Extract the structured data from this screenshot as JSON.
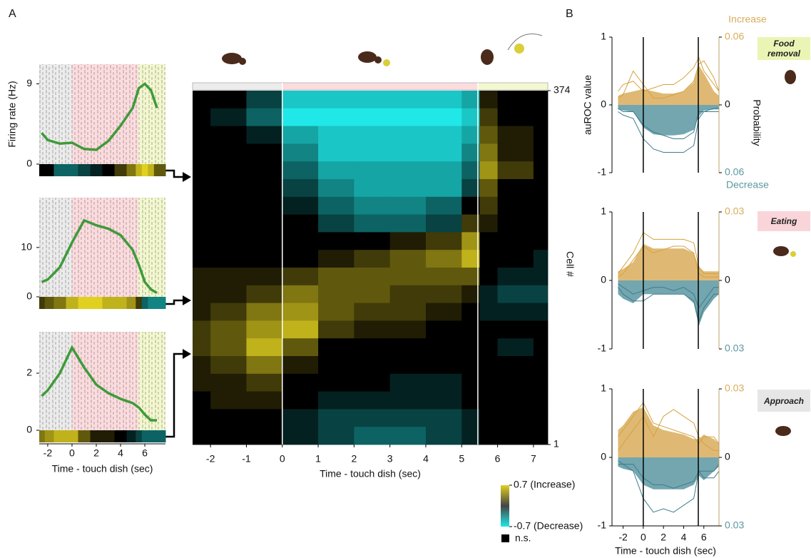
{
  "label_a": "A",
  "label_b": "B",
  "epoch_bounds": [
    0,
    5.45
  ],
  "chart_data": [
    {
      "type": "line",
      "ylabel": "Firing rate (Hz)",
      "color": "#3f9a3a",
      "x": [
        -2.5,
        -2,
        -1,
        0,
        1,
        2,
        3,
        4,
        5,
        5.5,
        6,
        6.5,
        7
      ],
      "values": [
        3.5,
        2.7,
        2.3,
        2.4,
        1.7,
        1.6,
        2.6,
        4.3,
        6.3,
        8.5,
        9.0,
        8.3,
        6.3
      ],
      "auroc": [
        0,
        0,
        -0.3,
        -0.3,
        -0.2,
        -0.1,
        0,
        0.2,
        0.4,
        0.6,
        0.7,
        0.6,
        0.3
      ],
      "xlim": [
        -2.7,
        7.7
      ],
      "ylim": [
        0,
        11.2
      ],
      "yticks": [
        0,
        9
      ]
    },
    {
      "type": "line",
      "color": "#3f9a3a",
      "x": [
        -2.5,
        -2,
        -1,
        0,
        1,
        2,
        3,
        4,
        5,
        5.5,
        6,
        6.5,
        7
      ],
      "values": [
        3,
        3.5,
        6,
        11,
        15.5,
        14.5,
        13.8,
        12.5,
        9.5,
        6.5,
        3,
        1.5,
        0.8
      ],
      "auroc": [
        0.2,
        0.3,
        0.4,
        0.6,
        0.7,
        0.7,
        0.6,
        0.6,
        0.5,
        0.2,
        -0.3,
        -0.4,
        -0.4
      ],
      "xlim": [
        -2.7,
        7.7
      ],
      "ylim": [
        0,
        20.1
      ],
      "yticks": [
        0,
        10
      ]
    },
    {
      "type": "line",
      "color": "#3f9a3a",
      "xlabel": "Time - touch dish (sec)",
      "x": [
        -2.5,
        -2,
        -1,
        0,
        1,
        2,
        3,
        4,
        5,
        5.5,
        6,
        6.5,
        7
      ],
      "values": [
        1.2,
        1.4,
        2.0,
        2.9,
        2.2,
        1.6,
        1.3,
        1.1,
        0.95,
        0.8,
        0.55,
        0.35,
        0.35
      ],
      "auroc": [
        0.4,
        0.5,
        0.6,
        0.6,
        0.3,
        0.1,
        0.1,
        0,
        -0.1,
        -0.2,
        -0.3,
        -0.3,
        -0.3
      ],
      "xlim": [
        -2.7,
        7.7
      ],
      "ylim": [
        0,
        3.45
      ],
      "yticks": [
        0,
        2
      ],
      "xticks": [
        -2,
        0,
        2,
        4,
        6
      ]
    },
    {
      "type": "heatmap",
      "xlabel": "Time - touch dish (sec)",
      "ylabel": "Cell #",
      "bins": [
        -2.5,
        -2,
        -1,
        0,
        1,
        2,
        3,
        4,
        5,
        5.5,
        6,
        7,
        7.4
      ],
      "xlim": [
        -2.5,
        7.4
      ],
      "xticks": [
        -2,
        -1,
        0,
        1,
        2,
        3,
        4,
        5,
        6,
        7
      ],
      "ylim": [
        1,
        374
      ],
      "yticks": [
        1,
        374
      ],
      "values": [
        [
          0,
          0,
          -0.2,
          -0.6,
          -0.6,
          -0.6,
          -0.6,
          -0.6,
          -0.5,
          0.1,
          0,
          0
        ],
        [
          0,
          -0.1,
          -0.3,
          -0.7,
          -0.7,
          -0.7,
          -0.7,
          -0.7,
          -0.6,
          0.2,
          0,
          0
        ],
        [
          0,
          0,
          -0.1,
          -0.5,
          -0.6,
          -0.6,
          -0.6,
          -0.6,
          -0.5,
          0.3,
          0.1,
          0
        ],
        [
          0,
          0,
          0,
          -0.4,
          -0.6,
          -0.6,
          -0.6,
          -0.6,
          -0.4,
          0.4,
          0.1,
          0
        ],
        [
          0,
          0,
          0,
          -0.3,
          -0.5,
          -0.5,
          -0.5,
          -0.5,
          -0.3,
          0.5,
          0.2,
          0
        ],
        [
          0,
          0,
          0,
          -0.2,
          -0.4,
          -0.5,
          -0.5,
          -0.5,
          -0.2,
          0.3,
          0,
          0
        ],
        [
          0,
          0,
          0,
          -0.1,
          -0.3,
          -0.4,
          -0.4,
          -0.3,
          0,
          0.2,
          0,
          0
        ],
        [
          0,
          0,
          0,
          0,
          -0.2,
          -0.3,
          -0.3,
          -0.2,
          0.2,
          0.1,
          0,
          0
        ],
        [
          0,
          0,
          0,
          0,
          0,
          0,
          0.1,
          0.2,
          0.5,
          0,
          0,
          0
        ],
        [
          0,
          0,
          0,
          0,
          0.1,
          0.2,
          0.3,
          0.4,
          0.6,
          0,
          0,
          -0.1
        ],
        [
          0.1,
          0.1,
          0.1,
          0.2,
          0.3,
          0.3,
          0.3,
          0.3,
          0.3,
          0,
          -0.1,
          -0.1
        ],
        [
          0.1,
          0.1,
          0.2,
          0.4,
          0.3,
          0.3,
          0.2,
          0.2,
          0.1,
          -0.1,
          -0.2,
          -0.2
        ],
        [
          0.1,
          0.2,
          0.4,
          0.5,
          0.3,
          0.2,
          0.2,
          0.1,
          0,
          -0.1,
          -0.1,
          -0.1
        ],
        [
          0.2,
          0.3,
          0.5,
          0.6,
          0.2,
          0.1,
          0.1,
          0,
          0,
          0,
          0,
          0
        ],
        [
          0.2,
          0.3,
          0.6,
          0.3,
          0,
          0,
          0,
          0,
          0,
          0,
          -0.1,
          0
        ],
        [
          0.1,
          0.2,
          0.4,
          0.1,
          0,
          0,
          0,
          0,
          0,
          0,
          0,
          0
        ],
        [
          0.1,
          0.1,
          0.2,
          0,
          0,
          0,
          -0.1,
          -0.1,
          0,
          0,
          0,
          0
        ],
        [
          0,
          0.1,
          0.1,
          0,
          -0.1,
          -0.1,
          -0.1,
          -0.1,
          0,
          0,
          0,
          0
        ],
        [
          0,
          0,
          0,
          -0.1,
          -0.2,
          -0.2,
          -0.2,
          -0.2,
          -0.1,
          0,
          0,
          0
        ],
        [
          0,
          0,
          0,
          -0.1,
          -0.2,
          -0.3,
          -0.3,
          -0.2,
          -0.1,
          0,
          0,
          0
        ]
      ],
      "colorbar": {
        "lim": [
          -0.7,
          0.7
        ],
        "ticks": [
          {
            "value": 0.7,
            "label": "0.7 (Increase)"
          },
          {
            "value": -0.7,
            "label": "-0.7 (Decrease)"
          }
        ]
      },
      "ns_label": "n.s."
    },
    {
      "type": "area",
      "tag": "Food removal",
      "ylabel": "auROC value",
      "y2label": "Probability",
      "x": [
        -2.5,
        -2,
        -1,
        0,
        1,
        2,
        3,
        4,
        5,
        5.5,
        6,
        7,
        7.5
      ],
      "xlim": [
        -3.1,
        7.5
      ],
      "ylim": [
        -1,
        1
      ],
      "yticks": [
        -1,
        0,
        1
      ],
      "y2lim": [
        -0.06,
        0.06
      ],
      "y2ticks": [
        {
          "value": 0.06,
          "label": "0.06"
        },
        0,
        {
          "value": -0.06,
          "label": "0.06"
        }
      ],
      "series": [
        {
          "name": "Increase",
          "color": "#d9ad5c",
          "axis": "y2",
          "values": [
            0.008,
            0.01,
            0.012,
            0.014,
            0.012,
            0.01,
            0.01,
            0.012,
            0.02,
            0.035,
            0.028,
            0.012,
            0.008
          ]
        },
        {
          "name": "Decrease",
          "color": "#5c97a2",
          "axis": "y2",
          "values": [
            -0.004,
            -0.005,
            -0.006,
            -0.02,
            -0.026,
            -0.027,
            -0.027,
            -0.026,
            -0.022,
            -0.01,
            -0.005,
            -0.004,
            -0.004
          ]
        }
      ],
      "lines": [
        {
          "color": "#d6a23c",
          "values": [
            0.2,
            0.3,
            0.35,
            0.2,
            0.25,
            0.3,
            0.3,
            0.4,
            0.55,
            0.7,
            0.5,
            0.3,
            0.2
          ]
        },
        {
          "color": "#d6a23c",
          "values": [
            0.1,
            0.15,
            0.5,
            0.3,
            0.1,
            0.1,
            0.15,
            0.2,
            0.35,
            0.6,
            0.65,
            0.4,
            0.2
          ]
        },
        {
          "color": "#3c7e8a",
          "values": [
            -0.1,
            -0.15,
            -0.2,
            -0.5,
            -0.65,
            -0.7,
            -0.7,
            -0.7,
            -0.6,
            -0.2,
            -0.1,
            -0.05,
            -0.05
          ]
        },
        {
          "color": "#3c7e8a",
          "values": [
            -0.05,
            -0.1,
            -0.1,
            -0.3,
            -0.4,
            -0.45,
            -0.5,
            -0.5,
            -0.4,
            -0.1,
            -0.1,
            -0.1,
            -0.1
          ]
        }
      ]
    },
    {
      "type": "area",
      "tag": "Eating",
      "x": [
        -2.5,
        -2,
        -1,
        0,
        1,
        2,
        3,
        4,
        5,
        5.5,
        6,
        7,
        7.5
      ],
      "xlim": [
        -3.1,
        7.5
      ],
      "ylim": [
        -1,
        1
      ],
      "yticks": [
        -1,
        0,
        1
      ],
      "y2lim": [
        -0.03,
        0.03
      ],
      "y2ticks": [
        {
          "value": 0.03,
          "label": "0.03"
        },
        0,
        {
          "value": -0.03,
          "label": "0.03"
        }
      ],
      "series": [
        {
          "color": "#d9ad5c",
          "axis": "y2",
          "values": [
            0.004,
            0.005,
            0.008,
            0.016,
            0.014,
            0.014,
            0.014,
            0.014,
            0.012,
            0.006,
            0.004,
            0.004,
            0.004
          ]
        },
        {
          "color": "#5c97a2",
          "axis": "y2",
          "values": [
            -0.006,
            -0.008,
            -0.01,
            -0.006,
            -0.006,
            -0.006,
            -0.006,
            -0.006,
            -0.01,
            -0.02,
            -0.014,
            -0.008,
            -0.006
          ]
        }
      ],
      "lines": [
        {
          "color": "#d6a23c",
          "values": [
            0.1,
            0.2,
            0.4,
            0.7,
            0.6,
            0.6,
            0.6,
            0.6,
            0.55,
            0.2,
            0.1,
            0.1,
            0.1
          ]
        },
        {
          "color": "#d6a23c",
          "values": [
            0.05,
            0.1,
            0.3,
            0.5,
            0.4,
            0.45,
            0.5,
            0.5,
            0.4,
            0.1,
            0.05,
            0.05,
            0.05
          ]
        },
        {
          "color": "#3c7e8a",
          "values": [
            -0.1,
            -0.2,
            -0.3,
            -0.3,
            -0.2,
            -0.2,
            -0.2,
            -0.2,
            -0.3,
            -0.6,
            -0.4,
            -0.2,
            -0.2
          ]
        },
        {
          "color": "#3c7e8a",
          "values": [
            -0.05,
            -0.1,
            -0.2,
            -0.15,
            -0.1,
            -0.1,
            -0.15,
            -0.1,
            -0.2,
            -0.4,
            -0.3,
            -0.1,
            -0.1
          ]
        }
      ]
    },
    {
      "type": "area",
      "tag": "Approach",
      "xlabel": "Time - touch dish (sec)",
      "x": [
        -2.5,
        -2,
        -1,
        0,
        1,
        2,
        3,
        4,
        5,
        5.5,
        6,
        7,
        7.5
      ],
      "xlim": [
        -3.1,
        7.5
      ],
      "xticks": [
        -2,
        0,
        2,
        4,
        6
      ],
      "ylim": [
        -1,
        1
      ],
      "yticks": [
        -1,
        0,
        1
      ],
      "y2lim": [
        -0.03,
        0.03
      ],
      "y2ticks": [
        {
          "value": 0.03,
          "label": "0.03"
        },
        0,
        {
          "value": -0.03,
          "label": "0.03"
        }
      ],
      "series": [
        {
          "color": "#d9ad5c",
          "axis": "y2",
          "values": [
            0.012,
            0.014,
            0.02,
            0.022,
            0.014,
            0.012,
            0.011,
            0.01,
            0.008,
            0.008,
            0.01,
            0.008,
            0.006
          ]
        },
        {
          "color": "#5c97a2",
          "axis": "y2",
          "values": [
            -0.004,
            -0.005,
            -0.006,
            -0.012,
            -0.014,
            -0.014,
            -0.014,
            -0.014,
            -0.012,
            -0.008,
            -0.01,
            -0.006,
            -0.004
          ]
        }
      ],
      "lines": [
        {
          "color": "#d6a23c",
          "values": [
            0.3,
            0.4,
            0.6,
            0.8,
            0.5,
            0.45,
            0.4,
            0.35,
            0.3,
            0.2,
            0.3,
            0.3,
            0.2
          ]
        },
        {
          "color": "#d6a23c",
          "values": [
            0.1,
            0.2,
            0.4,
            0.6,
            0.3,
            0.6,
            0.7,
            0.6,
            0.5,
            0.3,
            0.2,
            0.1,
            0.1
          ]
        },
        {
          "color": "#3c7e8a",
          "values": [
            -0.1,
            -0.1,
            -0.2,
            -0.6,
            -0.8,
            -0.75,
            -0.8,
            -0.7,
            -0.6,
            -0.2,
            -0.3,
            -0.3,
            -0.2
          ]
        },
        {
          "color": "#3c7e8a",
          "values": [
            -0.05,
            -0.1,
            -0.1,
            -0.3,
            -0.4,
            -0.4,
            -0.45,
            -0.4,
            -0.35,
            -0.2,
            -0.2,
            -0.2,
            -0.1
          ]
        }
      ]
    }
  ]
}
